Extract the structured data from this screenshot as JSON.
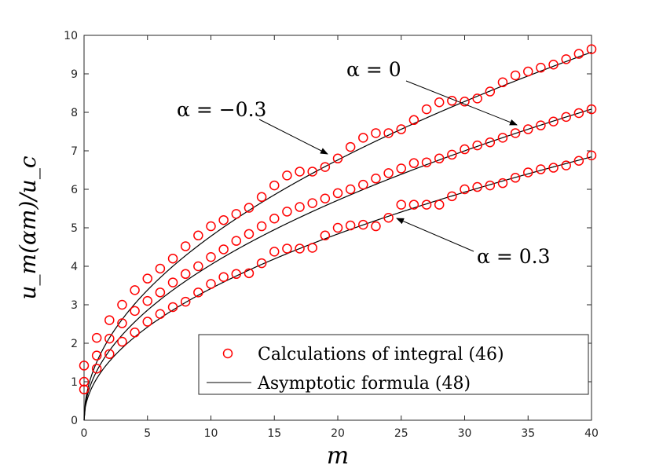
{
  "chart_data": {
    "type": "scatter",
    "xlabel": "m",
    "ylabel": "u_m(αm)/u_c",
    "xlim": [
      0,
      40
    ],
    "ylim": [
      0,
      10
    ],
    "xticks": [
      "0",
      "5",
      "10",
      "15",
      "20",
      "25",
      "30",
      "35",
      "40"
    ],
    "yticks": [
      "0",
      "1",
      "2",
      "3",
      "4",
      "5",
      "6",
      "7",
      "8",
      "9",
      "10"
    ],
    "grid": false,
    "legend": {
      "position": "bottom-right",
      "entries": [
        {
          "label": "Calculations of integral (46)",
          "marker": "circle",
          "color": "#ff0000"
        },
        {
          "label": "Asymptotic formula (48)",
          "marker": "line",
          "color": "#000000"
        }
      ]
    },
    "series": [
      {
        "name": "α = −0.3",
        "annotation": "α = −0.3",
        "points_y": [
          1.42,
          2.14,
          2.6,
          3.0,
          3.38,
          3.68,
          3.94,
          4.2,
          4.52,
          4.8,
          5.04,
          5.2,
          5.36,
          5.52,
          5.8,
          6.1,
          6.36,
          6.46,
          6.46,
          6.58,
          6.8,
          7.1,
          7.34,
          7.46,
          7.46,
          7.56,
          7.8,
          8.08,
          8.26,
          8.3,
          8.28,
          8.36,
          8.54,
          8.78,
          8.96,
          9.06,
          9.16,
          9.24,
          9.38,
          9.52,
          9.64
        ],
        "curve_coeff": 1.512
      },
      {
        "name": "α = 0",
        "annotation": "α = 0",
        "points_y": [
          1.0,
          1.68,
          2.12,
          2.52,
          2.84,
          3.1,
          3.32,
          3.58,
          3.8,
          4.0,
          4.24,
          4.44,
          4.66,
          4.84,
          5.04,
          5.24,
          5.42,
          5.54,
          5.64,
          5.76,
          5.9,
          6.0,
          6.12,
          6.28,
          6.42,
          6.54,
          6.68,
          6.7,
          6.8,
          6.9,
          7.04,
          7.14,
          7.22,
          7.34,
          7.46,
          7.56,
          7.66,
          7.76,
          7.88,
          7.98,
          8.08
        ],
        "curve_coeff": 1.278
      },
      {
        "name": "α = 0.3",
        "annotation": "α = 0.3",
        "points_y": [
          0.8,
          1.34,
          1.72,
          2.04,
          2.28,
          2.56,
          2.76,
          2.94,
          3.08,
          3.32,
          3.54,
          3.72,
          3.8,
          3.82,
          4.08,
          4.38,
          4.46,
          4.46,
          4.48,
          4.8,
          5.0,
          5.06,
          5.08,
          5.04,
          5.26,
          5.6,
          5.6,
          5.6,
          5.6,
          5.82,
          6.0,
          6.06,
          6.1,
          6.16,
          6.3,
          6.44,
          6.52,
          6.56,
          6.62,
          6.74,
          6.88
        ],
        "curve_coeff": 1.082
      }
    ],
    "x": [
      0,
      1,
      2,
      3,
      4,
      5,
      6,
      7,
      8,
      9,
      10,
      11,
      12,
      13,
      14,
      15,
      16,
      17,
      18,
      19,
      20,
      21,
      22,
      23,
      24,
      25,
      26,
      27,
      28,
      29,
      30,
      31,
      32,
      33,
      34,
      35,
      36,
      37,
      38,
      39,
      40
    ],
    "annotation_targets": [
      {
        "label": "α = −0.3",
        "x": 19.4,
        "y": 6.6
      },
      {
        "label": "α = 0",
        "x": 34.5,
        "y": 7.5
      },
      {
        "label": "α = 0.3",
        "x": 24.5,
        "y": 5.25
      }
    ]
  }
}
